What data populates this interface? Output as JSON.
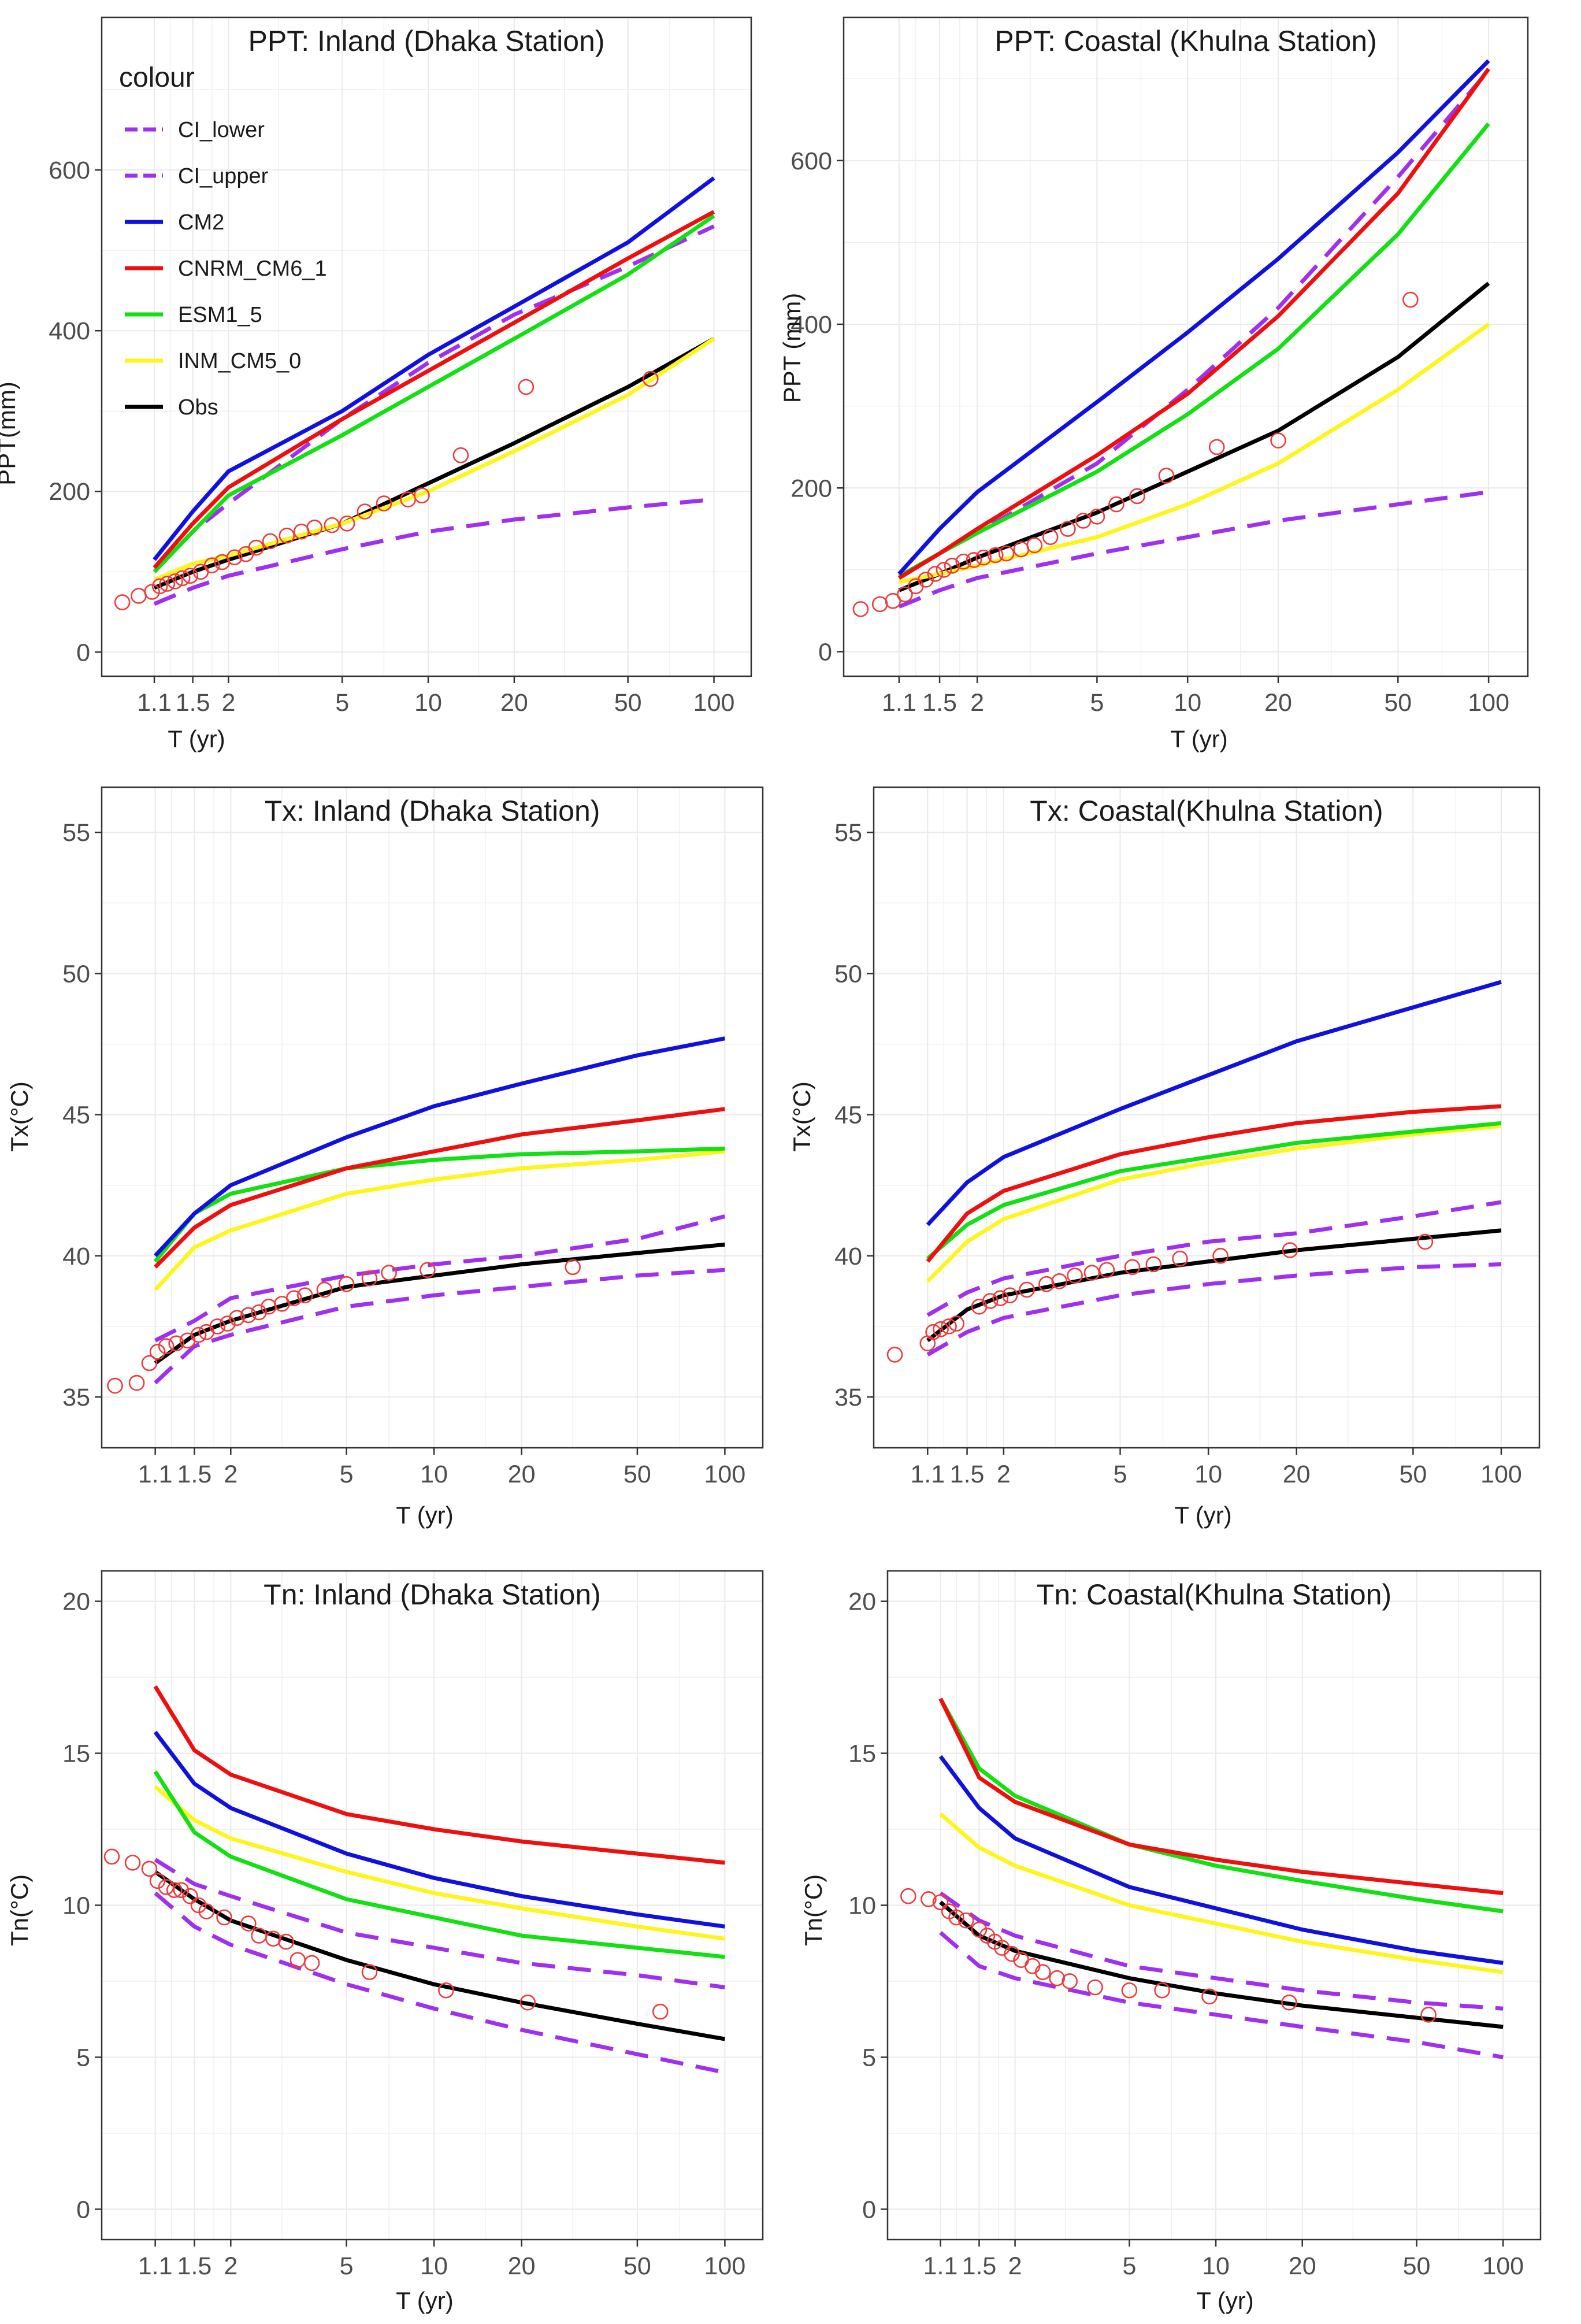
{
  "legend": {
    "title": "colour",
    "entries": [
      {
        "name": "CI_lower",
        "color": "#A030F0",
        "dashed": true
      },
      {
        "name": "CI_upper",
        "color": "#A030F0",
        "dashed": true
      },
      {
        "name": "CM2",
        "color": "#1010E0",
        "dashed": false
      },
      {
        "name": "CNRM_CM6_1",
        "color": "#EE0F0F",
        "dashed": false
      },
      {
        "name": "ESM1_5",
        "color": "#12E012",
        "dashed": false
      },
      {
        "name": "INM_CM5_0",
        "color": "#FFF51E",
        "dashed": false
      },
      {
        "name": "Obs",
        "color": "#000000",
        "dashed": false
      }
    ]
  },
  "chart_data": [
    {
      "type": "line",
      "title": "PPT: Inland (Dhaka Station)",
      "xlabel": "T (yr)",
      "ylabel": "PPT(mm)",
      "x_scale": "log",
      "xlim": [
        0.72,
        135
      ],
      "ylim": [
        -30,
        790
      ],
      "xticks": [
        "1.1",
        "1.5",
        "2",
        "5",
        "10",
        "20",
        "50",
        "100"
      ],
      "yticks": [
        "0",
        "200",
        "400",
        "600"
      ],
      "x": [
        1.1,
        1.5,
        2,
        5,
        10,
        20,
        50,
        100
      ],
      "series": [
        {
          "name": "CI_lower",
          "values": [
            60,
            80,
            95,
            128,
            150,
            165,
            180,
            190
          ]
        },
        {
          "name": "CI_upper",
          "values": [
            100,
            150,
            185,
            290,
            360,
            420,
            480,
            530
          ]
        },
        {
          "name": "CM2",
          "values": [
            115,
            175,
            225,
            300,
            370,
            430,
            510,
            590
          ]
        },
        {
          "name": "CNRM_CM6_1",
          "values": [
            105,
            160,
            205,
            290,
            350,
            410,
            490,
            548
          ]
        },
        {
          "name": "ESM1_5",
          "values": [
            100,
            150,
            195,
            270,
            330,
            390,
            470,
            543
          ]
        },
        {
          "name": "INM_CM5_0",
          "values": [
            90,
            110,
            120,
            160,
            200,
            250,
            320,
            390
          ]
        },
        {
          "name": "Obs",
          "values": [
            80,
            100,
            115,
            160,
            210,
            260,
            330,
            390
          ]
        }
      ],
      "observed_points": {
        "x": [
          0.85,
          0.97,
          1.08,
          1.15,
          1.22,
          1.3,
          1.38,
          1.47,
          1.6,
          1.75,
          1.9,
          2.1,
          2.3,
          2.5,
          2.8,
          3.2,
          3.6,
          4.0,
          4.6,
          5.2,
          6.0,
          7.0,
          8.5,
          9.5,
          13,
          22,
          60
        ],
        "y": [
          62,
          70,
          75,
          82,
          85,
          88,
          92,
          95,
          100,
          108,
          112,
          118,
          122,
          130,
          138,
          145,
          150,
          155,
          158,
          160,
          175,
          185,
          190,
          195,
          245,
          330,
          340
        ]
      }
    },
    {
      "type": "line",
      "title": "PPT: Coastal (Khulna Station)",
      "xlabel": "T (yr)",
      "ylabel": "PPT (mm)",
      "x_scale": "log",
      "xlim": [
        0.72,
        135
      ],
      "ylim": [
        -30,
        775
      ],
      "xticks": [
        "1.1",
        "1.5",
        "2",
        "5",
        "10",
        "20",
        "50",
        "100"
      ],
      "yticks": [
        "0",
        "200",
        "400",
        "600"
      ],
      "x": [
        1.1,
        1.5,
        2,
        5,
        10,
        20,
        50,
        100
      ],
      "series": [
        {
          "name": "CI_lower",
          "values": [
            55,
            75,
            90,
            120,
            140,
            160,
            180,
            195
          ]
        },
        {
          "name": "CI_upper",
          "values": [
            90,
            120,
            145,
            230,
            320,
            420,
            580,
            710
          ]
        },
        {
          "name": "CM2",
          "values": [
            95,
            150,
            195,
            305,
            390,
            480,
            610,
            722
          ]
        },
        {
          "name": "CNRM_CM6_1",
          "values": [
            90,
            120,
            150,
            240,
            315,
            410,
            560,
            712
          ]
        },
        {
          "name": "ESM1_5",
          "values": [
            92,
            120,
            145,
            220,
            290,
            370,
            510,
            645
          ]
        },
        {
          "name": "INM_CM5_0",
          "values": [
            85,
            95,
            105,
            140,
            180,
            230,
            320,
            400
          ]
        },
        {
          "name": "Obs",
          "values": [
            75,
            95,
            115,
            170,
            220,
            270,
            360,
            450
          ]
        }
      ],
      "observed_points": {
        "x": [
          0.82,
          0.95,
          1.05,
          1.15,
          1.25,
          1.35,
          1.45,
          1.55,
          1.65,
          1.8,
          1.95,
          2.1,
          2.3,
          2.5,
          2.8,
          3.1,
          3.5,
          4.0,
          4.5,
          5.0,
          5.8,
          6.8,
          8.5,
          12.5,
          20,
          55
        ],
        "y": [
          52,
          58,
          62,
          70,
          80,
          88,
          95,
          100,
          105,
          110,
          112,
          115,
          118,
          120,
          125,
          130,
          140,
          150,
          160,
          165,
          180,
          190,
          215,
          250,
          258,
          430
        ]
      }
    },
    {
      "type": "line",
      "title": "Tx: Inland (Dhaka Station)",
      "xlabel": "T (yr)",
      "ylabel": "Tx(°C)",
      "x_scale": "log",
      "xlim": [
        0.72,
        135
      ],
      "ylim": [
        33.2,
        56.6
      ],
      "xticks": [
        "1.1",
        "1.5",
        "2",
        "5",
        "10",
        "20",
        "50",
        "100"
      ],
      "yticks": [
        "35",
        "40",
        "45",
        "50",
        "55"
      ],
      "x": [
        1.1,
        1.5,
        2,
        5,
        10,
        20,
        50,
        100
      ],
      "series": [
        {
          "name": "CI_lower",
          "values": [
            35.5,
            36.8,
            37.2,
            38.2,
            38.6,
            38.9,
            39.3,
            39.5
          ]
        },
        {
          "name": "CI_upper",
          "values": [
            37.0,
            37.7,
            38.5,
            39.3,
            39.7,
            40.0,
            40.6,
            41.4
          ]
        },
        {
          "name": "CM2",
          "values": [
            40.0,
            41.5,
            42.5,
            44.2,
            45.3,
            46.1,
            47.1,
            47.7
          ]
        },
        {
          "name": "CNRM_CM6_1",
          "values": [
            39.6,
            41.0,
            41.8,
            43.1,
            43.7,
            44.3,
            44.8,
            45.2
          ]
        },
        {
          "name": "ESM1_5",
          "values": [
            39.8,
            41.5,
            42.2,
            43.1,
            43.4,
            43.6,
            43.7,
            43.8
          ]
        },
        {
          "name": "INM_CM5_0",
          "values": [
            38.8,
            40.3,
            40.9,
            42.2,
            42.7,
            43.1,
            43.4,
            43.7
          ]
        },
        {
          "name": "Obs",
          "values": [
            36.2,
            37.2,
            37.7,
            38.9,
            39.3,
            39.7,
            40.1,
            40.4
          ]
        }
      ],
      "observed_points": {
        "x": [
          0.8,
          0.95,
          1.05,
          1.12,
          1.2,
          1.3,
          1.42,
          1.55,
          1.65,
          1.8,
          1.95,
          2.1,
          2.3,
          2.5,
          2.7,
          3.0,
          3.3,
          3.6,
          4.2,
          5.0,
          6.0,
          7.0,
          9.5,
          30
        ],
        "y": [
          35.4,
          35.5,
          36.2,
          36.6,
          36.8,
          36.9,
          37.0,
          37.2,
          37.3,
          37.5,
          37.6,
          37.8,
          37.9,
          38.0,
          38.2,
          38.3,
          38.5,
          38.6,
          38.8,
          39.0,
          39.2,
          39.4,
          39.5,
          39.6
        ]
      }
    },
    {
      "type": "line",
      "title": "Tx: Coastal(Khulna Station)",
      "xlabel": "T (yr)",
      "ylabel": "Tx(°C)",
      "x_scale": "log",
      "xlim": [
        0.72,
        135
      ],
      "ylim": [
        33.2,
        56.6
      ],
      "xticks": [
        "1.1",
        "1.5",
        "2",
        "5",
        "10",
        "20",
        "50",
        "100"
      ],
      "yticks": [
        "35",
        "40",
        "45",
        "50",
        "55"
      ],
      "x": [
        1.1,
        1.5,
        2,
        5,
        10,
        20,
        50,
        100
      ],
      "series": [
        {
          "name": "CI_lower",
          "values": [
            36.5,
            37.3,
            37.8,
            38.6,
            39.0,
            39.3,
            39.6,
            39.7
          ]
        },
        {
          "name": "CI_upper",
          "values": [
            37.9,
            38.7,
            39.2,
            40.0,
            40.5,
            40.8,
            41.4,
            41.9
          ]
        },
        {
          "name": "CM2",
          "values": [
            41.1,
            42.6,
            43.5,
            45.2,
            46.4,
            47.6,
            48.8,
            49.7
          ]
        },
        {
          "name": "CNRM_CM6_1",
          "values": [
            39.8,
            41.5,
            42.3,
            43.6,
            44.2,
            44.7,
            45.1,
            45.3
          ]
        },
        {
          "name": "ESM1_5",
          "values": [
            39.9,
            41.1,
            41.8,
            43.0,
            43.5,
            44.0,
            44.4,
            44.7
          ]
        },
        {
          "name": "INM_CM5_0",
          "values": [
            39.1,
            40.5,
            41.3,
            42.7,
            43.3,
            43.8,
            44.3,
            44.6
          ]
        },
        {
          "name": "Obs",
          "values": [
            37.0,
            38.1,
            38.6,
            39.4,
            39.8,
            40.2,
            40.6,
            40.9
          ]
        }
      ],
      "observed_points": {
        "x": [
          0.85,
          1.1,
          1.15,
          1.22,
          1.3,
          1.38,
          1.65,
          1.8,
          1.95,
          2.1,
          2.4,
          2.8,
          3.1,
          3.5,
          4.0,
          4.5,
          5.5,
          6.5,
          8.0,
          11,
          19,
          55
        ],
        "y": [
          36.5,
          36.9,
          37.3,
          37.4,
          37.5,
          37.6,
          38.2,
          38.4,
          38.5,
          38.6,
          38.8,
          39.0,
          39.1,
          39.3,
          39.4,
          39.5,
          39.6,
          39.7,
          39.9,
          40.0,
          40.2,
          40.5
        ]
      }
    },
    {
      "type": "line",
      "title": "Tn: Inland (Dhaka Station)",
      "xlabel": "T (yr)",
      "ylabel": "Tn(°C)",
      "x_scale": "log",
      "xlim": [
        0.72,
        135
      ],
      "ylim": [
        -1,
        21
      ],
      "xticks": [
        "1.1",
        "1.5",
        "2",
        "5",
        "10",
        "20",
        "50",
        "100"
      ],
      "yticks": [
        "0",
        "5",
        "10",
        "15",
        "20"
      ],
      "x": [
        1.1,
        1.5,
        2,
        5,
        10,
        20,
        50,
        100
      ],
      "series": [
        {
          "name": "CI_lower",
          "values": [
            10.4,
            9.3,
            8.7,
            7.4,
            6.6,
            5.9,
            5.1,
            4.5
          ]
        },
        {
          "name": "CI_upper",
          "values": [
            11.5,
            10.7,
            10.3,
            9.1,
            8.6,
            8.1,
            7.7,
            7.3
          ]
        },
        {
          "name": "CM2",
          "values": [
            15.7,
            14.0,
            13.2,
            11.7,
            10.9,
            10.3,
            9.7,
            9.3
          ]
        },
        {
          "name": "CNRM_CM6_1",
          "values": [
            17.2,
            15.1,
            14.3,
            13.0,
            12.5,
            12.1,
            11.7,
            11.4
          ]
        },
        {
          "name": "ESM1_5",
          "values": [
            14.4,
            12.4,
            11.6,
            10.2,
            9.6,
            9.0,
            8.6,
            8.3
          ]
        },
        {
          "name": "INM_CM5_0",
          "values": [
            13.9,
            12.8,
            12.2,
            11.1,
            10.4,
            9.9,
            9.3,
            8.9
          ]
        },
        {
          "name": "Obs",
          "values": [
            11.1,
            10.2,
            9.5,
            8.2,
            7.4,
            6.8,
            6.1,
            5.6
          ]
        }
      ],
      "observed_points": {
        "x": [
          0.78,
          0.92,
          1.05,
          1.12,
          1.2,
          1.28,
          1.35,
          1.45,
          1.55,
          1.65,
          1.9,
          2.3,
          2.5,
          2.8,
          3.1,
          3.4,
          3.8,
          6.0,
          11,
          21,
          60
        ],
        "y": [
          11.6,
          11.4,
          11.2,
          10.8,
          10.6,
          10.5,
          10.5,
          10.3,
          10.0,
          9.8,
          9.6,
          9.4,
          9.0,
          8.9,
          8.8,
          8.2,
          8.1,
          7.8,
          7.2,
          6.8,
          6.5
        ]
      }
    },
    {
      "type": "line",
      "title": "Tn: Coastal(Khulna Station)",
      "xlabel": "T (yr)",
      "ylabel": "Tn(°C)",
      "x_scale": "log",
      "xlim": [
        0.72,
        135
      ],
      "ylim": [
        -1,
        21
      ],
      "xticks": [
        "1.1",
        "1.5",
        "2",
        "5",
        "10",
        "20",
        "50",
        "100"
      ],
      "yticks": [
        "0",
        "5",
        "10",
        "15",
        "20"
      ],
      "x": [
        1.1,
        1.5,
        2,
        5,
        10,
        20,
        50,
        100
      ],
      "series": [
        {
          "name": "CI_lower",
          "values": [
            9.1,
            8.0,
            7.6,
            6.8,
            6.4,
            6.0,
            5.5,
            5.0
          ]
        },
        {
          "name": "CI_upper",
          "values": [
            10.4,
            9.5,
            9.0,
            8.0,
            7.6,
            7.2,
            6.8,
            6.6
          ]
        },
        {
          "name": "CM2",
          "values": [
            14.9,
            13.2,
            12.2,
            10.6,
            9.9,
            9.2,
            8.5,
            8.1
          ]
        },
        {
          "name": "CNRM_CM6_1",
          "values": [
            16.8,
            14.2,
            13.4,
            12.0,
            11.5,
            11.1,
            10.7,
            10.4
          ]
        },
        {
          "name": "ESM1_5",
          "values": [
            16.8,
            14.5,
            13.6,
            12.0,
            11.3,
            10.8,
            10.2,
            9.8
          ]
        },
        {
          "name": "INM_CM5_0",
          "values": [
            13.0,
            11.9,
            11.3,
            10.0,
            9.4,
            8.8,
            8.2,
            7.8
          ]
        },
        {
          "name": "Obs",
          "values": [
            10.1,
            9.0,
            8.5,
            7.6,
            7.1,
            6.7,
            6.3,
            6.0
          ]
        }
      ],
      "observed_points": {
        "x": [
          0.85,
          1.0,
          1.1,
          1.18,
          1.25,
          1.35,
          1.5,
          1.6,
          1.7,
          1.8,
          1.95,
          2.1,
          2.3,
          2.5,
          2.8,
          3.1,
          3.8,
          5.0,
          6.5,
          9.5,
          18,
          55
        ],
        "y": [
          10.3,
          10.2,
          10.1,
          9.8,
          9.6,
          9.5,
          9.2,
          9.0,
          8.8,
          8.6,
          8.4,
          8.2,
          8.0,
          7.8,
          7.6,
          7.5,
          7.3,
          7.2,
          7.2,
          7.0,
          6.8,
          6.4
        ]
      }
    }
  ]
}
